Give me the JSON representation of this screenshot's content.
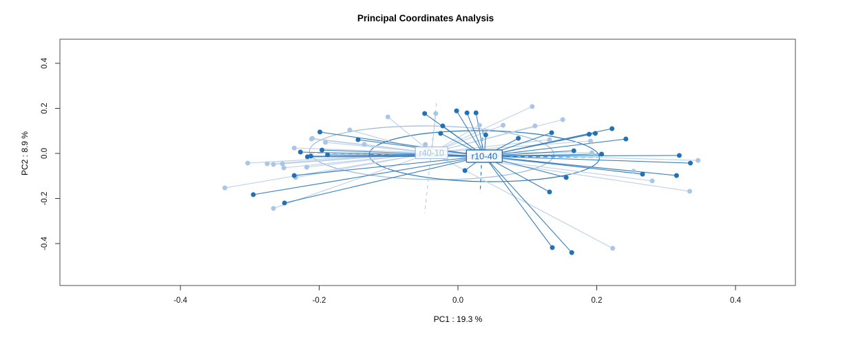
{
  "title": "Principal Coordinates Analysis",
  "axes": {
    "xlabel": "PC1 :  19.3 %",
    "ylabel": "PC2 :  8.9 %",
    "x_ticks": [
      {
        "v": -0.4,
        "label": "-0.4"
      },
      {
        "v": -0.2,
        "label": "-0.2"
      },
      {
        "v": 0.0,
        "label": "0.0"
      },
      {
        "v": 0.2,
        "label": "0.2"
      },
      {
        "v": 0.4,
        "label": "0.4"
      }
    ],
    "y_ticks": [
      {
        "v": -0.4,
        "label": "-0.4"
      },
      {
        "v": -0.2,
        "label": "-0.2"
      },
      {
        "v": 0.0,
        "label": "0.0"
      },
      {
        "v": 0.2,
        "label": "0.2"
      },
      {
        "v": 0.4,
        "label": "0.4"
      }
    ]
  },
  "chart_data": {
    "type": "scatter",
    "title": "Principal Coordinates Analysis",
    "xlabel": "PC1 :  19.3 %",
    "ylabel": "PC2 :  8.9 %",
    "xlim": [
      -0.574,
      0.486
    ],
    "ylim": [
      -0.586,
      0.507
    ],
    "grid": false,
    "legend": "none",
    "description": "PCoA ordination with two groups: spider lines from group centroid to each sample, centroid labels in boxes, solid group ellipses and dashed centroid axes",
    "series": [
      {
        "name": "r40-10",
        "point_color": "#aac5e6",
        "line_color": "#b9cee9",
        "ellipse_color": "#9bb9dc",
        "label_text_color": "#a3bfe0",
        "centroid": [
          -0.038,
          0.003
        ],
        "ellipse": {
          "rx": 0.176,
          "ry": 0.119,
          "tilt_deg": 0.8
        },
        "hline": [
          [
            -0.213,
            0.0
          ],
          [
            0.139,
            -0.012
          ]
        ],
        "vline": [
          [
            -0.031,
            0.223
          ],
          [
            -0.048,
            -0.266
          ]
        ],
        "label_box": {
          "w": 47,
          "h": 17,
          "font": 12.5
        },
        "points": [
          [
            -0.101,
            0.162
          ],
          [
            -0.156,
            0.104
          ],
          [
            -0.211,
            0.064
          ],
          [
            -0.191,
            0.049
          ],
          [
            -0.135,
            0.04
          ],
          [
            -0.236,
            0.024
          ],
          [
            -0.21,
            0.067
          ],
          [
            -0.303,
            -0.043
          ],
          [
            -0.275,
            -0.046
          ],
          [
            -0.266,
            -0.049
          ],
          [
            -0.253,
            -0.046
          ],
          [
            -0.251,
            -0.064
          ],
          [
            -0.218,
            -0.061
          ],
          [
            -0.336,
            -0.153
          ],
          [
            -0.266,
            -0.244
          ],
          [
            -0.234,
            -0.107
          ],
          [
            -0.032,
            0.177
          ],
          [
            -0.047,
            0.04
          ],
          [
            0.031,
            0.125
          ],
          [
            0.065,
            0.125
          ],
          [
            0.107,
            0.208
          ],
          [
            0.111,
            0.122
          ],
          [
            0.132,
            0.061
          ],
          [
            0.151,
            0.15
          ],
          [
            0.191,
            0.055
          ],
          [
            0.193,
            0.003
          ],
          [
            0.223,
            -0.421
          ],
          [
            0.28,
            -0.122
          ],
          [
            0.334,
            -0.168
          ],
          [
            0.346,
            -0.031
          ],
          [
            0.253,
            -0.079
          ]
        ]
      },
      {
        "name": "r10-40",
        "point_color": "#2171b5",
        "line_color": "#2e7abb",
        "ellipse_color": "#2e77b5",
        "label_text_color": "#1f6cb0",
        "centroid": [
          0.038,
          -0.012
        ],
        "ellipse": {
          "rx": 0.166,
          "ry": 0.113,
          "tilt_deg": 0.8
        },
        "hline": [
          [
            -0.128,
            -0.006
          ],
          [
            0.203,
            -0.018
          ]
        ],
        "vline": [
          [
            0.036,
            0.101
          ],
          [
            0.032,
            -0.174
          ]
        ],
        "label_box": {
          "w": 52,
          "h": 18,
          "font": 13
        },
        "points": [
          [
            -0.199,
            0.095
          ],
          [
            -0.144,
            0.061
          ],
          [
            -0.227,
            0.006
          ],
          [
            -0.217,
            -0.015
          ],
          [
            -0.212,
            -0.012
          ],
          [
            -0.196,
            0.015
          ],
          [
            -0.188,
            -0.006
          ],
          [
            -0.236,
            -0.098
          ],
          [
            -0.295,
            -0.183
          ],
          [
            -0.25,
            -0.22
          ],
          [
            -0.048,
            0.177
          ],
          [
            -0.002,
            0.189
          ],
          [
            0.013,
            0.18
          ],
          [
            0.026,
            0.18
          ],
          [
            -0.022,
            0.122
          ],
          [
            -0.025,
            0.089
          ],
          [
            0.04,
            0.082
          ],
          [
            0.087,
            0.067
          ],
          [
            0.135,
            0.092
          ],
          [
            0.167,
            0.012
          ],
          [
            0.189,
            0.085
          ],
          [
            0.198,
            0.089
          ],
          [
            0.222,
            0.11
          ],
          [
            0.242,
            0.064
          ],
          [
            0.207,
            -0.003
          ],
          [
            0.319,
            -0.009
          ],
          [
            0.335,
            -0.043
          ],
          [
            0.266,
            -0.092
          ],
          [
            0.315,
            -0.098
          ],
          [
            0.01,
            -0.076
          ],
          [
            0.132,
            -0.171
          ],
          [
            0.156,
            -0.107
          ],
          [
            0.136,
            -0.418
          ],
          [
            0.164,
            -0.44
          ]
        ]
      }
    ]
  },
  "colors": {
    "background": "#ffffff",
    "plot_border": "#4d4d4d",
    "tick": "#333333",
    "label_box_fill": "#ffffff"
  }
}
